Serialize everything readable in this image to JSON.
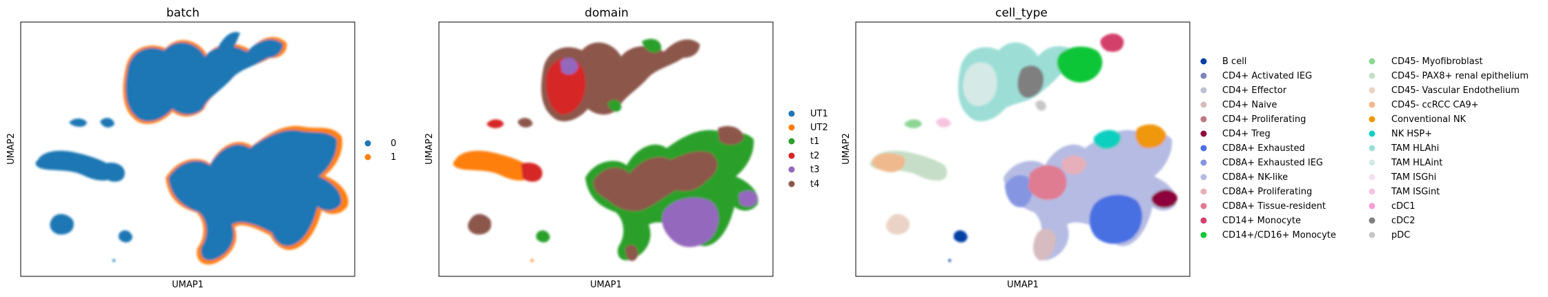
{
  "chart_data": [
    {
      "type": "scatter",
      "title": "batch",
      "xlabel": "UMAP1",
      "ylabel": "UMAP2",
      "grid": false,
      "legend": "right",
      "categories": [
        {
          "label": "0",
          "color": "#1f77b4"
        },
        {
          "label": "1",
          "color": "#ff7f0e"
        }
      ]
    },
    {
      "type": "scatter",
      "title": "domain",
      "xlabel": "UMAP1",
      "ylabel": "UMAP2",
      "grid": false,
      "legend": "right",
      "categories": [
        {
          "label": "UT1",
          "color": "#1f77b4"
        },
        {
          "label": "UT2",
          "color": "#ff7f0e"
        },
        {
          "label": "t1",
          "color": "#2ca02c"
        },
        {
          "label": "t2",
          "color": "#d62728"
        },
        {
          "label": "t3",
          "color": "#9467bd"
        },
        {
          "label": "t4",
          "color": "#8c564b"
        }
      ]
    },
    {
      "type": "scatter",
      "title": "cell_type",
      "xlabel": "UMAP1",
      "ylabel": "UMAP2",
      "grid": false,
      "legend": "right",
      "categories": [
        {
          "label": "B cell",
          "color": "#023fa5"
        },
        {
          "label": "CD4+ Activated IEG",
          "color": "#7d87b9"
        },
        {
          "label": "CD4+ Effector",
          "color": "#bec1d4"
        },
        {
          "label": "CD4+ Naive",
          "color": "#d6bcc0"
        },
        {
          "label": "CD4+ Proliferating",
          "color": "#bb7784"
        },
        {
          "label": "CD4+ Treg",
          "color": "#8e063b"
        },
        {
          "label": "CD8A+ Exhausted",
          "color": "#4a6fe3"
        },
        {
          "label": "CD8A+ Exhausted IEG",
          "color": "#8595e1"
        },
        {
          "label": "CD8A+ NK-like",
          "color": "#b5bbe3"
        },
        {
          "label": "CD8A+ Proliferating",
          "color": "#e6afb9"
        },
        {
          "label": "CD8A+ Tissue-resident",
          "color": "#e07b91"
        },
        {
          "label": "CD14+ Monocyte",
          "color": "#d33f6a"
        },
        {
          "label": "CD14+/CD16+ Monocyte",
          "color": "#11c638"
        },
        {
          "label": "CD45- Myofibroblast",
          "color": "#8dd593"
        },
        {
          "label": "CD45- PAX8+ renal epithelium",
          "color": "#c6dec7"
        },
        {
          "label": "CD45- Vascular Endothelium",
          "color": "#ead3c6"
        },
        {
          "label": "CD45- ccRCC CA9+",
          "color": "#f0b98d"
        },
        {
          "label": "Conventional NK",
          "color": "#ef9708"
        },
        {
          "label": "NK HSP+",
          "color": "#0fcfc0"
        },
        {
          "label": "TAM HLAhi",
          "color": "#9cded6"
        },
        {
          "label": "TAM HLAint",
          "color": "#d5eae7"
        },
        {
          "label": "TAM ISGhi",
          "color": "#f3e1eb"
        },
        {
          "label": "TAM ISGint",
          "color": "#f6c4e1"
        },
        {
          "label": "cDC1",
          "color": "#f79cd4"
        },
        {
          "label": "cDC2",
          "color": "#7f7f7f"
        },
        {
          "label": "pDC",
          "color": "#c7c7c7"
        }
      ]
    }
  ]
}
